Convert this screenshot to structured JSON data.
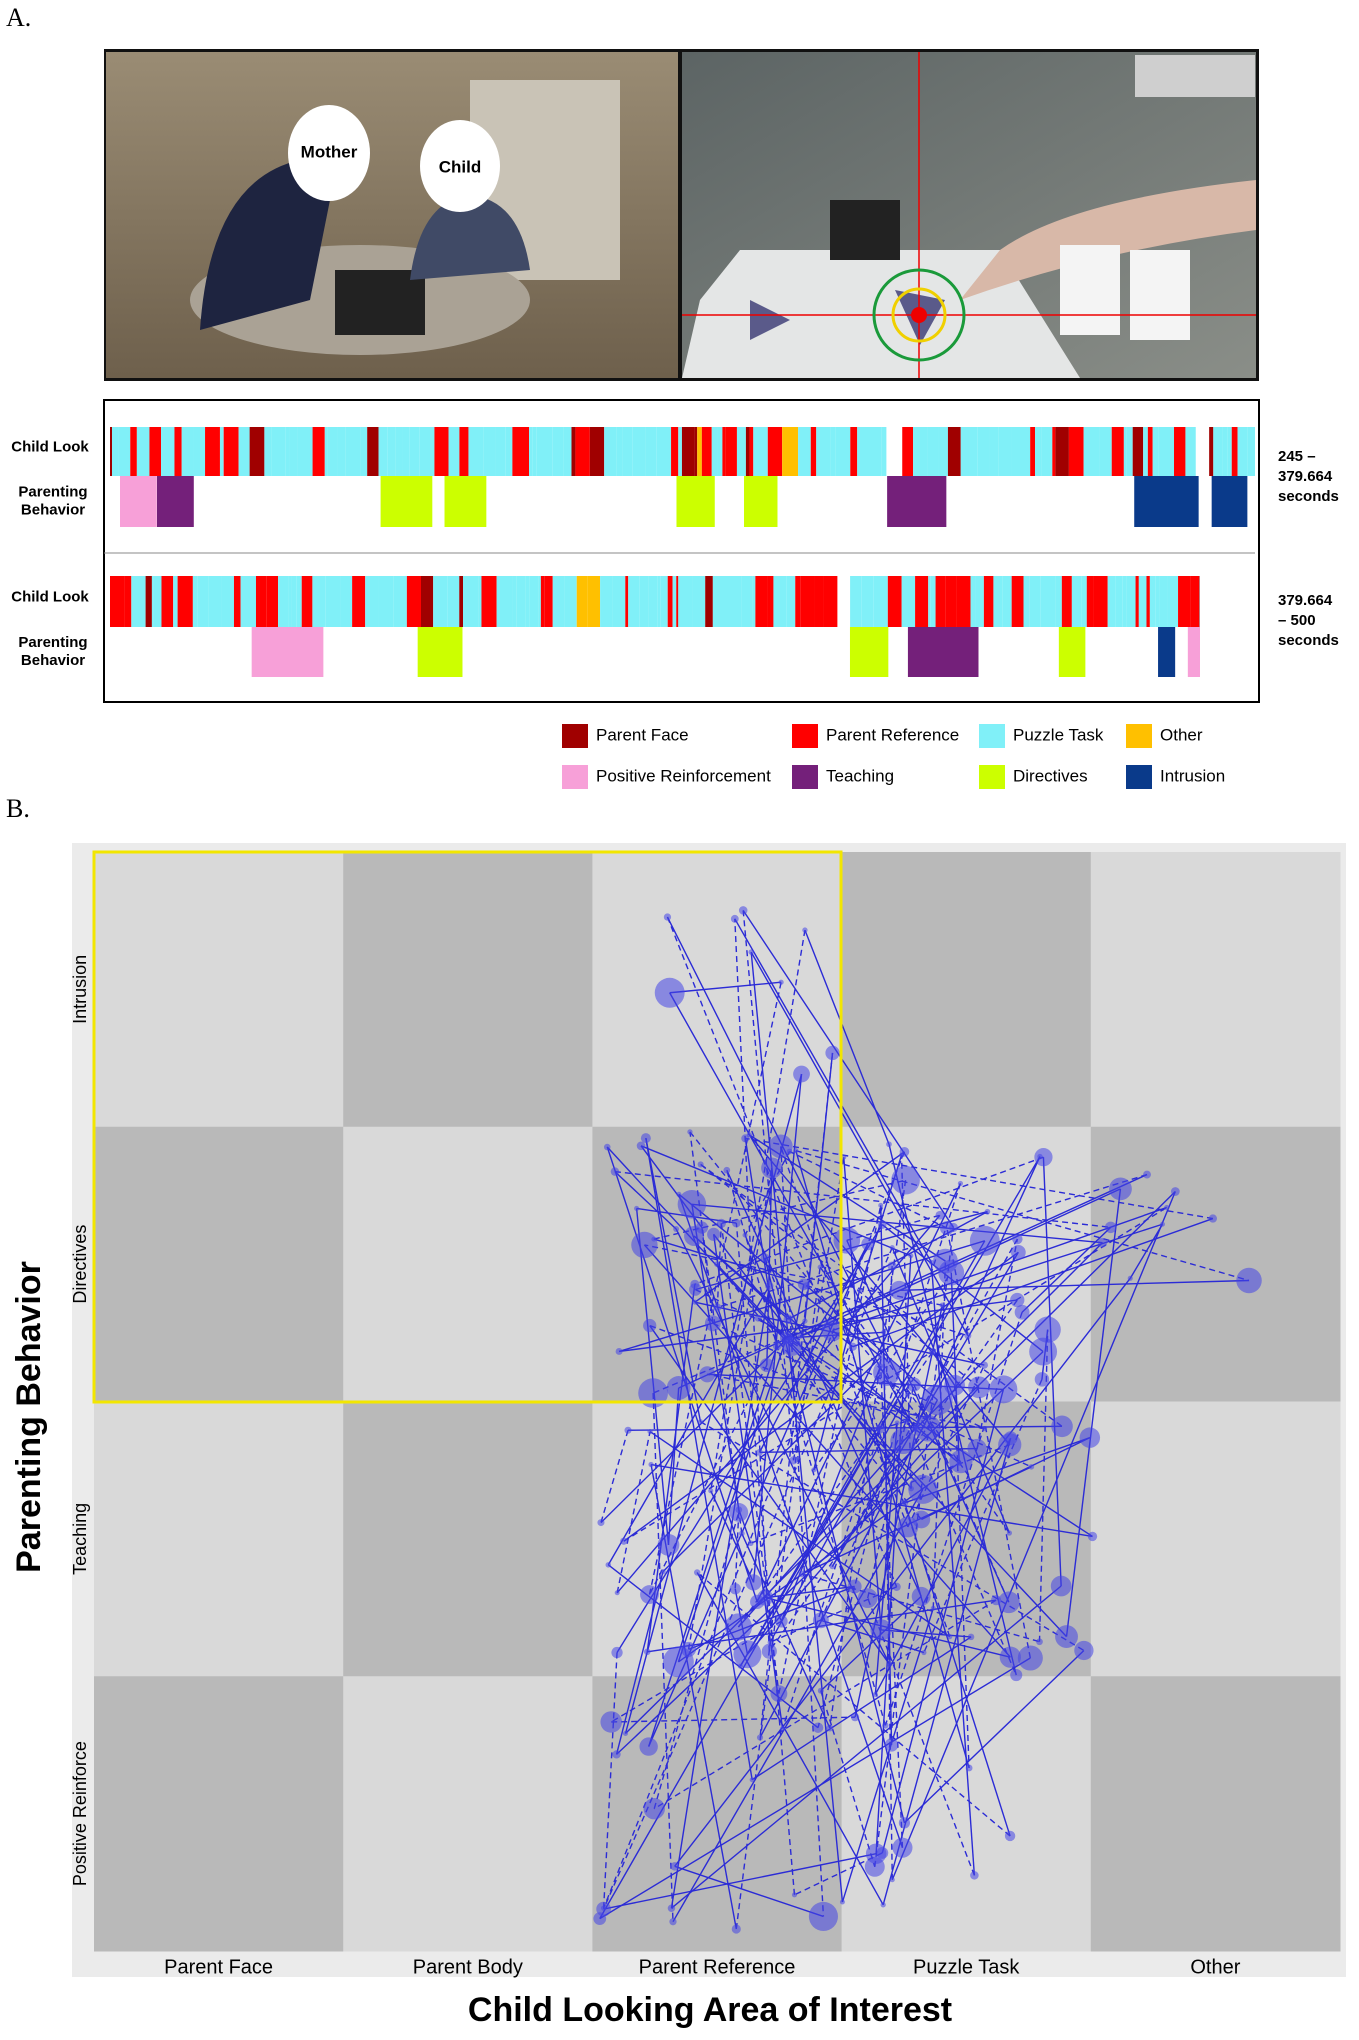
{
  "panel_a": {
    "label": "A.",
    "photo_labels": [
      "Mother",
      "Child"
    ],
    "timeline": {
      "rows": [
        {
          "look_label": "Child Look",
          "behavior_label": [
            "Parenting",
            "Behavior"
          ],
          "time_range": [
            "245 –",
            "379.664",
            "seconds"
          ]
        },
        {
          "look_label": "Child Look",
          "behavior_label": [
            "Parenting",
            "Behavior"
          ],
          "time_range": [
            "379.664",
            "– 500",
            "seconds"
          ]
        }
      ]
    },
    "legend": [
      {
        "label": "Parent Face",
        "color": "#a00000"
      },
      {
        "label": "Parent Reference",
        "color": "#ff0000"
      },
      {
        "label": "Puzzle  Task",
        "color": "#80f0f8"
      },
      {
        "label": "Other",
        "color": "#ffc000"
      },
      {
        "label": "Positive Reinforcement",
        "color": "#f7a0d8"
      },
      {
        "label": "Teaching",
        "color": "#74207a"
      },
      {
        "label": "Directives",
        "color": "#ccff00"
      },
      {
        "label": "Intrusion",
        "color": "#0a3a8a"
      }
    ]
  },
  "panel_b": {
    "label": "B.",
    "x_title": "Child Looking Area of Interest",
    "y_title": "Parenting Behavior",
    "x_categories": [
      "Parent Face",
      "Parent Body",
      "Parent Reference",
      "Puzzle Task",
      "Other"
    ],
    "y_categories": [
      "Intrusion",
      "Directives",
      "Teaching",
      "Positive Reinforce"
    ]
  }
}
